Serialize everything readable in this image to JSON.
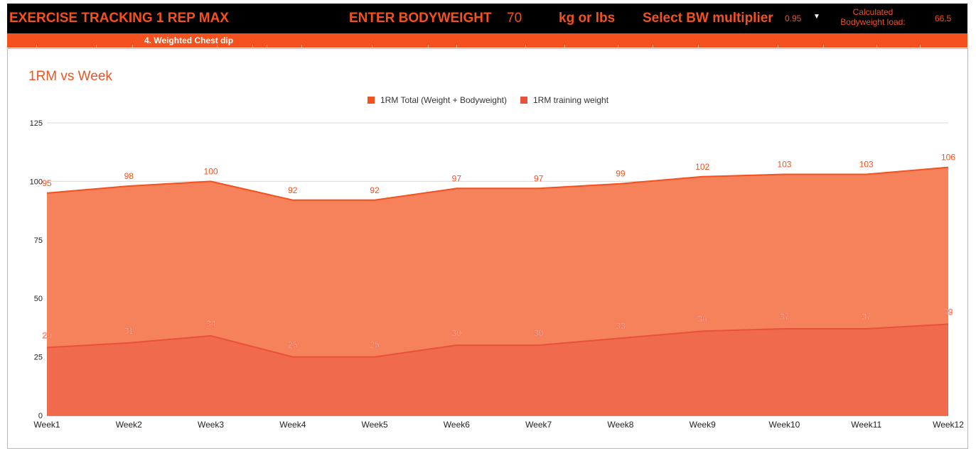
{
  "header": {
    "title": "EXERCISE TRACKING 1 REP MAX",
    "enter_label": "ENTER BODYWEIGHT",
    "bodyweight": "70",
    "unit_label": "kg or lbs",
    "select_label": "Select BW multiplier",
    "multiplier": "0.95",
    "calc_label": "Calculated Bodyweight load:",
    "calc_value": "66.5"
  },
  "exercise": {
    "name": "4. Weighted Chest dip"
  },
  "chart_data": {
    "type": "area",
    "title": "1RM vs Week",
    "xlabel": "",
    "ylabel": "",
    "categories": [
      "Week1",
      "Week2",
      "Week3",
      "Week4",
      "Week5",
      "Week6",
      "Week7",
      "Week8",
      "Week9",
      "Week10",
      "Week11",
      "Week12"
    ],
    "series": [
      {
        "name": "1RM Total (Weight + Bodyweight)",
        "values": [
          95,
          98,
          100,
          92,
          92,
          97,
          97,
          99,
          102,
          103,
          103,
          106
        ],
        "color": "#f4511e"
      },
      {
        "name": "1RM training weight",
        "values": [
          29,
          31,
          34,
          25,
          25,
          30,
          30,
          33,
          36,
          37,
          37,
          39
        ],
        "color": "#e8513a"
      }
    ],
    "ylim": [
      0,
      125
    ],
    "yticks": [
      0,
      25,
      50,
      75,
      100,
      125
    ],
    "grid": true,
    "legend": "top",
    "title_color": "#f4511e"
  }
}
